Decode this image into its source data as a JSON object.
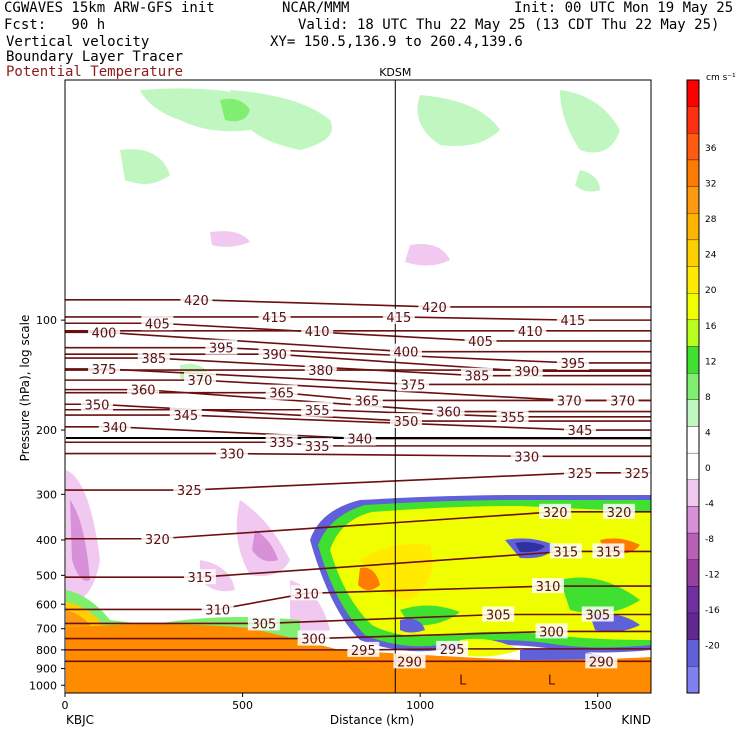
{
  "header": {
    "model": "CGWAVES 15km ARW-GFS init",
    "org": "NCAR/MMM",
    "init": "Init: 00 UTC Mon 19 May 25",
    "fcst": "Fcst:   90 h",
    "valid": "Valid: 18 UTC Thu 22 May 25 (13 CDT Thu 22 May 25)",
    "field1": "Vertical velocity",
    "field2": "Boundary Layer Tracer",
    "field3": "Potential Temperature",
    "xy": "XY= 150.5,136.9 to 260.4,139.6"
  },
  "colors": {
    "theta_contour": "#6b0f0f",
    "terrain": "#ff8c00"
  },
  "chart_data": {
    "type": "cross-section",
    "xlabel": "Distance (km)",
    "ylabel": "Pressure (hPa), log scale",
    "x_ticks": [
      "0",
      "500",
      "1000",
      "1500"
    ],
    "x_range_km": [
      0,
      1650
    ],
    "y_ticks": [
      "100",
      "200",
      "300",
      "400",
      "500",
      "600",
      "700",
      "800",
      "900",
      "1000"
    ],
    "y_scale": "log",
    "y_range_hpa": [
      1050,
      22
    ],
    "left_station": "KBJC",
    "right_station": "KIND",
    "marker_station": "KDSM",
    "marker_km": 930,
    "colorbar_unit": "cm s⁻¹",
    "colorbar_labels": [
      "36",
      "32",
      "28",
      "24",
      "20",
      "16",
      "12",
      "8",
      "4",
      "0",
      "-4",
      "-8",
      "-12",
      "-16",
      "-20"
    ],
    "colorbar_colors": [
      "#ff0000",
      "#ff3010",
      "#ff5a10",
      "#ff7a00",
      "#ff9a10",
      "#ffb400",
      "#ffd000",
      "#ffea00",
      "#f0ff00",
      "#b8ff20",
      "#40e030",
      "#80ee70",
      "#c0f7c0",
      "#ffffff",
      "#ffffff",
      "#f0c8f0",
      "#d890d8",
      "#b860b8",
      "#9840a0",
      "#7030a0",
      "#602890",
      "#6060d8",
      "#8080f0"
    ],
    "theta_labels": [
      {
        "v": "420",
        "km": 370,
        "p": 88
      },
      {
        "v": "420",
        "km": 1040,
        "p": 92
      },
      {
        "v": "415",
        "km": 590,
        "p": 98
      },
      {
        "v": "415",
        "km": 940,
        "p": 98
      },
      {
        "v": "415",
        "km": 1430,
        "p": 100
      },
      {
        "v": "410",
        "km": 710,
        "p": 107
      },
      {
        "v": "410",
        "km": 1310,
        "p": 107
      },
      {
        "v": "405",
        "km": 260,
        "p": 102
      },
      {
        "v": "405",
        "km": 1170,
        "p": 114
      },
      {
        "v": "400",
        "km": 110,
        "p": 108
      },
      {
        "v": "400",
        "km": 960,
        "p": 122
      },
      {
        "v": "395",
        "km": 440,
        "p": 119
      },
      {
        "v": "395",
        "km": 1430,
        "p": 131
      },
      {
        "v": "390",
        "km": 590,
        "p": 124
      },
      {
        "v": "390",
        "km": 1300,
        "p": 138
      },
      {
        "v": "385",
        "km": 250,
        "p": 127
      },
      {
        "v": "385",
        "km": 1160,
        "p": 142
      },
      {
        "v": "380",
        "km": 720,
        "p": 137
      },
      {
        "v": "375",
        "km": 110,
        "p": 136
      },
      {
        "v": "375",
        "km": 980,
        "p": 150
      },
      {
        "v": "370",
        "km": 380,
        "p": 146
      },
      {
        "v": "370",
        "km": 1420,
        "p": 166
      },
      {
        "v": "370",
        "km": 1570,
        "p": 166
      },
      {
        "v": "365",
        "km": 610,
        "p": 158
      },
      {
        "v": "365",
        "km": 850,
        "p": 166
      },
      {
        "v": "360",
        "km": 220,
        "p": 155
      },
      {
        "v": "360",
        "km": 1080,
        "p": 178
      },
      {
        "v": "355",
        "km": 710,
        "p": 176
      },
      {
        "v": "355",
        "km": 1260,
        "p": 184
      },
      {
        "v": "350",
        "km": 90,
        "p": 170
      },
      {
        "v": "350",
        "km": 960,
        "p": 189
      },
      {
        "v": "345",
        "km": 340,
        "p": 182
      },
      {
        "v": "345",
        "km": 1450,
        "p": 200
      },
      {
        "v": "340",
        "km": 140,
        "p": 196
      },
      {
        "v": "340",
        "km": 830,
        "p": 211
      },
      {
        "v": "335",
        "km": 610,
        "p": 216
      },
      {
        "v": "335",
        "km": 710,
        "p": 221
      },
      {
        "v": "330",
        "km": 470,
        "p": 232
      },
      {
        "v": "330",
        "km": 1300,
        "p": 236
      },
      {
        "v": "325",
        "km": 350,
        "p": 292
      },
      {
        "v": "325",
        "km": 1450,
        "p": 262
      },
      {
        "v": "325",
        "km": 1610,
        "p": 262
      },
      {
        "v": "320",
        "km": 260,
        "p": 397
      },
      {
        "v": "320",
        "km": 1380,
        "p": 335
      },
      {
        "v": "320",
        "km": 1560,
        "p": 335
      },
      {
        "v": "315",
        "km": 380,
        "p": 506
      },
      {
        "v": "315",
        "km": 1410,
        "p": 430
      },
      {
        "v": "315",
        "km": 1530,
        "p": 430
      },
      {
        "v": "310",
        "km": 430,
        "p": 620
      },
      {
        "v": "310",
        "km": 680,
        "p": 560
      },
      {
        "v": "310",
        "km": 1360,
        "p": 535
      },
      {
        "v": "305",
        "km": 560,
        "p": 677
      },
      {
        "v": "305",
        "km": 1220,
        "p": 640
      },
      {
        "v": "305",
        "km": 1500,
        "p": 640
      },
      {
        "v": "300",
        "km": 700,
        "p": 745
      },
      {
        "v": "300",
        "km": 1370,
        "p": 712
      },
      {
        "v": "295",
        "km": 840,
        "p": 800
      },
      {
        "v": "295",
        "km": 1090,
        "p": 795
      },
      {
        "v": "290",
        "km": 970,
        "p": 860
      },
      {
        "v": "290",
        "km": 1510,
        "p": 860
      }
    ],
    "low_labels": [
      {
        "v": "L",
        "km": 1120,
        "p": 965
      },
      {
        "v": "L",
        "km": 1370,
        "p": 965
      }
    ]
  }
}
